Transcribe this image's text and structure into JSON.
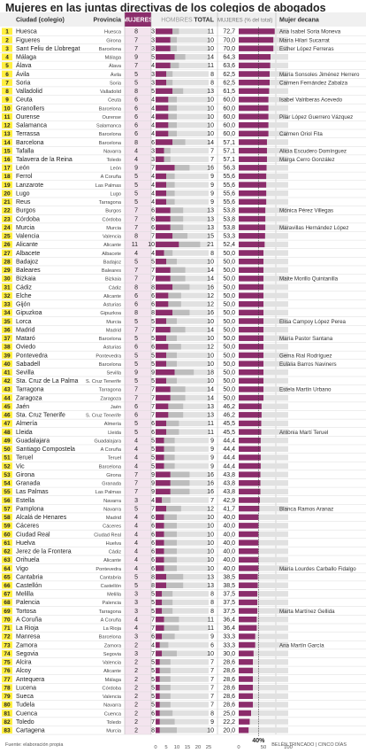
{
  "title": "Mujeres en las juntas directivas de los colegios de abogados",
  "source": "Fuente: elaboración propia",
  "credit": "BELÉN TRINCADO | CINCO DÍAS",
  "colors": {
    "women": "#8b2d6b",
    "men": "#bdbdbd",
    "bar_bg": "#e1e1e1",
    "pct_bar": "#8b2d6b",
    "header_bg": "#f0f0f0",
    "highlight_col": "#f3e4ee",
    "rank_badge": "#ffef3f",
    "rule": "#aaaaaa"
  },
  "chart_data": {
    "type": "table",
    "headers": {
      "city": "Ciudad (colegio)",
      "province": "Provincia",
      "women": "MUJERES",
      "men": "HOMBRES",
      "total": "TOTAL",
      "pct": "MUJERES (% del total)",
      "dean": "Mujer decana"
    },
    "scale_ticks": [
      "0",
      "5",
      "10",
      "15",
      "20",
      "25"
    ],
    "pct_ticks": [
      "0",
      "50",
      "100"
    ],
    "reference_label": "40%",
    "reference_value": 40,
    "rows": [
      {
        "rank": "1",
        "city": "Huesca",
        "province": "Huesca",
        "women": 8,
        "men": 3,
        "total": 11,
        "pct": "72,7",
        "dean": "Ana Isabel Soria Moneva"
      },
      {
        "rank": "2",
        "city": "Figueres",
        "province": "Girona",
        "women": 7,
        "men": 3,
        "total": 10,
        "pct": "70,0",
        "dean": "María Hilari Sucarrat"
      },
      {
        "rank": "3",
        "city": "Sant Feliu de Llobregat",
        "province": "Barcelona",
        "women": 7,
        "men": 3,
        "total": 10,
        "pct": "70,0",
        "dean": "Esther López Ferreras"
      },
      {
        "rank": "4",
        "city": "Málaga",
        "province": "Málaga",
        "women": 9,
        "men": 5,
        "total": 14,
        "pct": "64,3",
        "dean": ""
      },
      {
        "rank": "5",
        "city": "Álava",
        "province": "Álava",
        "women": 7,
        "men": 4,
        "total": 11,
        "pct": "63,6",
        "dean": ""
      },
      {
        "rank": "6",
        "city": "Ávila",
        "province": "Ávila",
        "women": 5,
        "men": 3,
        "total": 8,
        "pct": "62,5",
        "dean": "María Sonsoles Jiménez Herrero"
      },
      {
        "rank": "7",
        "city": "Soria",
        "province": "Soria",
        "women": 5,
        "men": 3,
        "total": 8,
        "pct": "62,5",
        "dean": "Carmen Fernández Zabalza"
      },
      {
        "rank": "8",
        "city": "Valladolid",
        "province": "Valladolid",
        "women": 8,
        "men": 5,
        "total": 13,
        "pct": "61,5",
        "dean": ""
      },
      {
        "rank": "9",
        "city": "Ceuta",
        "province": "Ceuta",
        "women": 6,
        "men": 4,
        "total": 10,
        "pct": "60,0",
        "dean": "Isabel Valriberas Acevedo"
      },
      {
        "rank": "10",
        "city": "Granollers",
        "province": "Barcelona",
        "women": 6,
        "men": 4,
        "total": 10,
        "pct": "60,0",
        "dean": ""
      },
      {
        "rank": "11",
        "city": "Ourense",
        "province": "Ourense",
        "women": 6,
        "men": 4,
        "total": 10,
        "pct": "60,0",
        "dean": "Pilar López Guerrero Vázquez"
      },
      {
        "rank": "12",
        "city": "Salamanca",
        "province": "Salamanca",
        "women": 6,
        "men": 4,
        "total": 10,
        "pct": "60,0",
        "dean": ""
      },
      {
        "rank": "13",
        "city": "Terrassa",
        "province": "Barcelona",
        "women": 6,
        "men": 4,
        "total": 10,
        "pct": "60,0",
        "dean": "Carmen Oriol Fita"
      },
      {
        "rank": "14",
        "city": "Barcelona",
        "province": "Barcelona",
        "women": 8,
        "men": 6,
        "total": 14,
        "pct": "57,1",
        "dean": ""
      },
      {
        "rank": "15",
        "city": "Tafalla",
        "province": "Navarra",
        "women": 4,
        "men": 3,
        "total": 7,
        "pct": "57,1",
        "dean": "Alicia Escudero Domínguez"
      },
      {
        "rank": "16",
        "city": "Talavera de la Reina",
        "province": "Toledo",
        "women": 4,
        "men": 3,
        "total": 7,
        "pct": "57,1",
        "dean": "Marga Cerro González"
      },
      {
        "rank": "17",
        "city": "León",
        "province": "León",
        "women": 9,
        "men": 7,
        "total": 16,
        "pct": "56,3",
        "dean": ""
      },
      {
        "rank": "18",
        "city": "Ferrol",
        "province": "A Coruña",
        "women": 5,
        "men": 4,
        "total": 9,
        "pct": "55,6",
        "dean": ""
      },
      {
        "rank": "19",
        "city": "Lanzarote",
        "province": "Las Palmas",
        "women": 5,
        "men": 4,
        "total": 9,
        "pct": "55,6",
        "dean": ""
      },
      {
        "rank": "20",
        "city": "Lugo",
        "province": "Lugo",
        "women": 5,
        "men": 4,
        "total": 9,
        "pct": "55,6",
        "dean": ""
      },
      {
        "rank": "21",
        "city": "Reus",
        "province": "Tarragona",
        "women": 5,
        "men": 4,
        "total": 9,
        "pct": "55,6",
        "dean": ""
      },
      {
        "rank": "22",
        "city": "Burgos",
        "province": "Burgos",
        "women": 7,
        "men": 6,
        "total": 13,
        "pct": "53,8",
        "dean": "Mónica Pérez Villegas"
      },
      {
        "rank": "23",
        "city": "Córdoba",
        "province": "Córdoba",
        "women": 7,
        "men": 6,
        "total": 13,
        "pct": "53,8",
        "dean": ""
      },
      {
        "rank": "24",
        "city": "Murcia",
        "province": "Murcia",
        "women": 7,
        "men": 6,
        "total": 13,
        "pct": "53,8",
        "dean": "Maravillas Hernández López"
      },
      {
        "rank": "25",
        "city": "Valencia",
        "province": "Valencia",
        "women": 8,
        "men": 7,
        "total": 15,
        "pct": "53,3",
        "dean": ""
      },
      {
        "rank": "26",
        "city": "Alicante",
        "province": "Alicante",
        "women": 11,
        "men": 10,
        "total": 21,
        "pct": "52,4",
        "dean": ""
      },
      {
        "rank": "27",
        "city": "Albacete",
        "province": "Albacete",
        "women": 4,
        "men": 4,
        "total": 8,
        "pct": "50,0",
        "dean": ""
      },
      {
        "rank": "28",
        "city": "Badajoz",
        "province": "Badajoz",
        "women": 5,
        "men": 5,
        "total": 10,
        "pct": "50,0",
        "dean": ""
      },
      {
        "rank": "29",
        "city": "Baleares",
        "province": "Baleares",
        "women": 7,
        "men": 7,
        "total": 14,
        "pct": "50,0",
        "dean": ""
      },
      {
        "rank": "30",
        "city": "Bizkaia",
        "province": "Bizkaia",
        "women": 7,
        "men": 7,
        "total": 14,
        "pct": "50,0",
        "dean": "Maite Morillo Quintanilla"
      },
      {
        "rank": "31",
        "city": "Cádiz",
        "province": "Cádiz",
        "women": 8,
        "men": 8,
        "total": 16,
        "pct": "50,0",
        "dean": ""
      },
      {
        "rank": "32",
        "city": "Elche",
        "province": "Alicante",
        "women": 6,
        "men": 6,
        "total": 12,
        "pct": "50,0",
        "dean": ""
      },
      {
        "rank": "33",
        "city": "Gijón",
        "province": "Asturias",
        "women": 6,
        "men": 6,
        "total": 12,
        "pct": "50,0",
        "dean": ""
      },
      {
        "rank": "34",
        "city": "Gipuzkoa",
        "province": "Gipuzkoa",
        "women": 8,
        "men": 8,
        "total": 16,
        "pct": "50,0",
        "dean": ""
      },
      {
        "rank": "35",
        "city": "Lorca",
        "province": "Murcia",
        "women": 5,
        "men": 5,
        "total": 10,
        "pct": "50,0",
        "dean": "Elisa Campoy López Perea"
      },
      {
        "rank": "36",
        "city": "Madrid",
        "province": "Madrid",
        "women": 7,
        "men": 7,
        "total": 14,
        "pct": "50,0",
        "dean": ""
      },
      {
        "rank": "37",
        "city": "Mataró",
        "province": "Barcelona",
        "women": 5,
        "men": 5,
        "total": 10,
        "pct": "50,0",
        "dean": "María Pastor Santana"
      },
      {
        "rank": "38",
        "city": "Oviedo",
        "province": "Asturias",
        "women": 6,
        "men": 6,
        "total": 12,
        "pct": "50,0",
        "dean": ""
      },
      {
        "rank": "39",
        "city": "Pontevedra",
        "province": "Pontevedra",
        "women": 5,
        "men": 5,
        "total": 10,
        "pct": "50,0",
        "dean": "Gema Rial Rodríguez"
      },
      {
        "rank": "40",
        "city": "Sabadell",
        "province": "Barcelona",
        "women": 5,
        "men": 5,
        "total": 10,
        "pct": "50,0",
        "dean": "Eulàlia Barros Naviners"
      },
      {
        "rank": "41",
        "city": "Sevilla",
        "province": "Sevilla",
        "women": 9,
        "men": 9,
        "total": 18,
        "pct": "50,0",
        "dean": ""
      },
      {
        "rank": "42",
        "city": "Sta. Cruz de La Palma",
        "province": "S. Cruz Tenerife",
        "women": 5,
        "men": 5,
        "total": 10,
        "pct": "50,0",
        "dean": ""
      },
      {
        "rank": "43",
        "city": "Tarragona",
        "province": "Tarragona",
        "women": 7,
        "men": 7,
        "total": 14,
        "pct": "50,0",
        "dean": "Estela Martín Urbano"
      },
      {
        "rank": "44",
        "city": "Zaragoza",
        "province": "Zaragoza",
        "women": 7,
        "men": 7,
        "total": 14,
        "pct": "50,0",
        "dean": ""
      },
      {
        "rank": "45",
        "city": "Jaén",
        "province": "Jaén",
        "women": 6,
        "men": 7,
        "total": 13,
        "pct": "46,2",
        "dean": ""
      },
      {
        "rank": "46",
        "city": "Sta. Cruz Tenerife",
        "province": "S. Cruz Tenerife",
        "women": 6,
        "men": 7,
        "total": 13,
        "pct": "46,2",
        "dean": ""
      },
      {
        "rank": "47",
        "city": "Almería",
        "province": "Almería",
        "women": 5,
        "men": 6,
        "total": 11,
        "pct": "45,5",
        "dean": ""
      },
      {
        "rank": "48",
        "city": "Lleida",
        "province": "Lleida",
        "women": 5,
        "men": 6,
        "total": 11,
        "pct": "45,5",
        "dean": "Antònia Martí Teruel"
      },
      {
        "rank": "49",
        "city": "Guadalajara",
        "province": "Guadalajara",
        "women": 4,
        "men": 5,
        "total": 9,
        "pct": "44,4",
        "dean": ""
      },
      {
        "rank": "50",
        "city": "Santiago Compostela",
        "province": "A Coruña",
        "women": 4,
        "men": 5,
        "total": 9,
        "pct": "44,4",
        "dean": ""
      },
      {
        "rank": "51",
        "city": "Teruel",
        "province": "Teruel",
        "women": 4,
        "men": 5,
        "total": 9,
        "pct": "44,4",
        "dean": ""
      },
      {
        "rank": "52",
        "city": "Vic",
        "province": "Barcelona",
        "women": 4,
        "men": 5,
        "total": 9,
        "pct": "44,4",
        "dean": ""
      },
      {
        "rank": "53",
        "city": "Girona",
        "province": "Girona",
        "women": 7,
        "men": 9,
        "total": 16,
        "pct": "43,8",
        "dean": ""
      },
      {
        "rank": "54",
        "city": "Granada",
        "province": "Granada",
        "women": 7,
        "men": 9,
        "total": 16,
        "pct": "43,8",
        "dean": ""
      },
      {
        "rank": "55",
        "city": "Las Palmas",
        "province": "Las Palmas",
        "women": 7,
        "men": 9,
        "total": 16,
        "pct": "43,8",
        "dean": ""
      },
      {
        "rank": "56",
        "city": "Estella",
        "province": "Navarra",
        "women": 3,
        "men": 4,
        "total": 7,
        "pct": "42,9",
        "dean": ""
      },
      {
        "rank": "57",
        "city": "Pamplona",
        "province": "Navarra",
        "women": 5,
        "men": 7,
        "total": 12,
        "pct": "41,7",
        "dean": "Blanca Ramos Aranaz"
      },
      {
        "rank": "58",
        "city": "Alcalá de Henares",
        "province": "Madrid",
        "women": 4,
        "men": 6,
        "total": 10,
        "pct": "40,0",
        "dean": ""
      },
      {
        "rank": "59",
        "city": "Cáceres",
        "province": "Cáceres",
        "women": 4,
        "men": 6,
        "total": 10,
        "pct": "40,0",
        "dean": ""
      },
      {
        "rank": "60",
        "city": "Ciudad Real",
        "province": "Ciudad Real",
        "women": 4,
        "men": 6,
        "total": 10,
        "pct": "40,0",
        "dean": ""
      },
      {
        "rank": "61",
        "city": "Huelva",
        "province": "Huelva",
        "women": 4,
        "men": 6,
        "total": 10,
        "pct": "40,0",
        "dean": ""
      },
      {
        "rank": "62",
        "city": "Jerez de la Frontera",
        "province": "Cádiz",
        "women": 4,
        "men": 6,
        "total": 10,
        "pct": "40,0",
        "dean": ""
      },
      {
        "rank": "63",
        "city": "Orihuela",
        "province": "Alicante",
        "women": 4,
        "men": 6,
        "total": 10,
        "pct": "40,0",
        "dean": ""
      },
      {
        "rank": "64",
        "city": "Vigo",
        "province": "Pontevedra",
        "women": 4,
        "men": 6,
        "total": 10,
        "pct": "40,0",
        "dean": "María Lourdes Carballo Fidalgo"
      },
      {
        "rank": "65",
        "city": "Cantabria",
        "province": "Cantabria",
        "women": 5,
        "men": 8,
        "total": 13,
        "pct": "38,5",
        "dean": ""
      },
      {
        "rank": "66",
        "city": "Castellón",
        "province": "Castellón",
        "women": 5,
        "men": 8,
        "total": 13,
        "pct": "38,5",
        "dean": ""
      },
      {
        "rank": "67",
        "city": "Melilla",
        "province": "Melilla",
        "women": 3,
        "men": 5,
        "total": 8,
        "pct": "37,5",
        "dean": ""
      },
      {
        "rank": "68",
        "city": "Palencia",
        "province": "Palencia",
        "women": 3,
        "men": 5,
        "total": 8,
        "pct": "37,5",
        "dean": ""
      },
      {
        "rank": "69",
        "city": "Tortosa",
        "province": "Tarragona",
        "women": 3,
        "men": 5,
        "total": 8,
        "pct": "37,5",
        "dean": "Marta Martínez Gellida"
      },
      {
        "rank": "70",
        "city": "A Coruña",
        "province": "A Coruña",
        "women": 4,
        "men": 7,
        "total": 11,
        "pct": "36,4",
        "dean": ""
      },
      {
        "rank": "71",
        "city": "La Rioja",
        "province": "La Rioja",
        "women": 4,
        "men": 7,
        "total": 11,
        "pct": "36,4",
        "dean": ""
      },
      {
        "rank": "72",
        "city": "Manresa",
        "province": "Barcelona",
        "women": 3,
        "men": 6,
        "total": 9,
        "pct": "33,3",
        "dean": ""
      },
      {
        "rank": "73",
        "city": "Zamora",
        "province": "Zamora",
        "women": 2,
        "men": 4,
        "total": 6,
        "pct": "33,3",
        "dean": "Ana Martín García"
      },
      {
        "rank": "74",
        "city": "Segovia",
        "province": "Segovia",
        "women": 3,
        "men": 7,
        "total": 10,
        "pct": "30,0",
        "dean": ""
      },
      {
        "rank": "75",
        "city": "Alcira",
        "province": "Valencia",
        "women": 2,
        "men": 5,
        "total": 7,
        "pct": "28,6",
        "dean": ""
      },
      {
        "rank": "76",
        "city": "Alcoy",
        "province": "Alicante",
        "women": 2,
        "men": 5,
        "total": 7,
        "pct": "28,6",
        "dean": ""
      },
      {
        "rank": "77",
        "city": "Antequera",
        "province": "Málaga",
        "women": 2,
        "men": 5,
        "total": 7,
        "pct": "28,6",
        "dean": ""
      },
      {
        "rank": "78",
        "city": "Lucena",
        "province": "Córdoba",
        "women": 2,
        "men": 5,
        "total": 7,
        "pct": "28,6",
        "dean": ""
      },
      {
        "rank": "79",
        "city": "Sueca",
        "province": "Valencia",
        "women": 2,
        "men": 5,
        "total": 7,
        "pct": "28,6",
        "dean": ""
      },
      {
        "rank": "80",
        "city": "Tudela",
        "province": "Navarra",
        "women": 2,
        "men": 5,
        "total": 7,
        "pct": "28,6",
        "dean": ""
      },
      {
        "rank": "81",
        "city": "Cuenca",
        "province": "Cuenca",
        "women": 2,
        "men": 6,
        "total": 8,
        "pct": "25,0",
        "dean": ""
      },
      {
        "rank": "82",
        "city": "Toledo",
        "province": "Toledo",
        "women": 2,
        "men": 7,
        "total": 9,
        "pct": "22,2",
        "dean": ""
      },
      {
        "rank": "83",
        "city": "Cartagena",
        "province": "Murcia",
        "women": 2,
        "men": 8,
        "total": 10,
        "pct": "20,0",
        "dean": ""
      }
    ]
  }
}
